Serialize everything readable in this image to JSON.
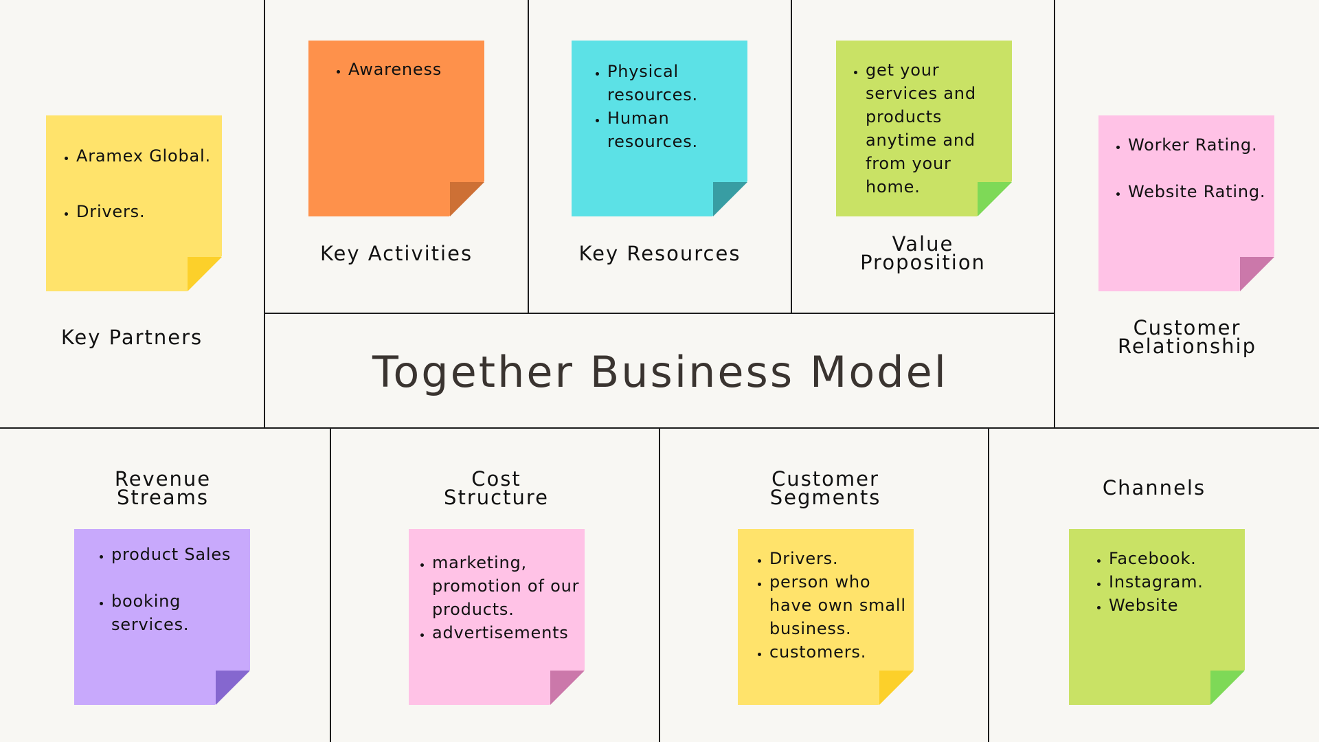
{
  "title": "Together Business Model",
  "colors": {
    "background": "#f8f7f3",
    "grid_line": "#1d1d1d",
    "yellow": "#ffe36b",
    "yellow_fold": "#fcd02a",
    "orange": "#fe914b",
    "orange_fold": "#cd7035",
    "cyan": "#5ce1e6",
    "cyan_fold": "#389da3",
    "lime": "#c9e265",
    "lime_fold": "#7ed957",
    "pink": "#ffc2e6",
    "pink_fold": "#cb78aa",
    "purple": "#c8a9fc",
    "purple_fold": "#8567cf"
  },
  "sections": {
    "key_partners": {
      "label": "Key Partners",
      "items": [
        "Aramex Global.",
        "Drivers."
      ]
    },
    "key_activities": {
      "label": "Key Activities",
      "items": [
        "Awareness"
      ]
    },
    "key_resources": {
      "label": "Key Resources",
      "items": [
        "Physical resources.",
        "Human resources."
      ]
    },
    "value_proposition": {
      "label": "Value\nProposition",
      "items": [
        "get your services and products anytime and from your home."
      ]
    },
    "customer_relationship": {
      "label": "Customer\nRelationship",
      "items": [
        "Worker Rating.",
        "Website Rating."
      ]
    },
    "revenue_streams": {
      "label": "Revenue\nStreams",
      "items": [
        "product Sales",
        "booking services."
      ]
    },
    "cost_structure": {
      "label": "Cost\nStructure",
      "items": [
        "marketing, promotion of our products.",
        "advertisements"
      ]
    },
    "customer_segments": {
      "label": "Customer\nSegments",
      "items": [
        "Drivers.",
        "person who have own small business.",
        "customers."
      ]
    },
    "channels": {
      "label": "Channels",
      "items": [
        "Facebook.",
        "Instagram.",
        "Website"
      ]
    }
  }
}
